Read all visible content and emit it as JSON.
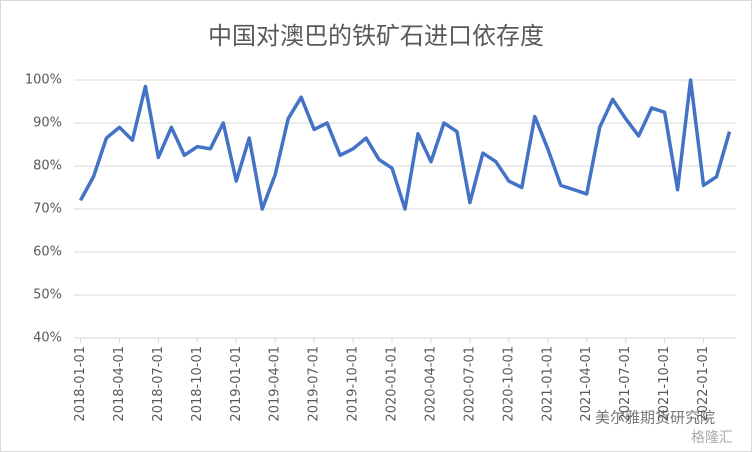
{
  "chart_data": {
    "type": "line",
    "title": "中国对澳巴的铁矿石进口依存度",
    "categories": [
      "2018-01-01",
      null,
      null,
      "2018-04-01",
      null,
      null,
      "2018-07-01",
      null,
      null,
      "2018-10-01",
      null,
      null,
      "2019-01-01",
      null,
      null,
      "2019-04-01",
      null,
      null,
      "2019-07-01",
      null,
      null,
      "2019-10-01",
      null,
      null,
      "2020-01-01",
      null,
      null,
      "2020-04-01",
      null,
      null,
      "2020-07-01",
      null,
      null,
      "2020-10-01",
      null,
      null,
      "2021-01-01",
      null,
      null,
      "2021-04-01",
      null,
      null,
      "2021-07-01",
      null,
      null,
      "2021-10-01",
      null,
      null,
      "2022-01-01",
      null,
      null
    ],
    "series": [
      {
        "name": "依存度",
        "color": "#4472c4",
        "values": [
          72,
          77.5,
          86.5,
          89,
          86,
          98.5,
          82,
          89,
          82.5,
          84.5,
          84,
          90,
          76.5,
          86.5,
          70,
          78,
          91,
          96,
          88.5,
          90,
          82.5,
          84,
          86.5,
          81.5,
          79.5,
          70,
          87.5,
          81,
          90,
          88,
          71.5,
          83,
          81,
          76.5,
          75,
          91.5,
          84,
          75.5,
          74.5,
          73.5,
          89,
          95.5,
          91,
          87,
          93.5,
          92.5,
          74.5,
          100,
          75.5,
          77.5,
          88
        ]
      }
    ],
    "ylim": [
      40,
      100
    ],
    "yticks": [
      {
        "value": 40,
        "label": "40%"
      },
      {
        "value": 50,
        "label": "50%"
      },
      {
        "value": 60,
        "label": "60%"
      },
      {
        "value": 70,
        "label": "70%"
      },
      {
        "value": 80,
        "label": "80%"
      },
      {
        "value": 90,
        "label": "90%"
      },
      {
        "value": 100,
        "label": "100%"
      }
    ],
    "grid": true,
    "watermark": [
      "美尔雅期货研究院",
      "格隆汇"
    ]
  }
}
